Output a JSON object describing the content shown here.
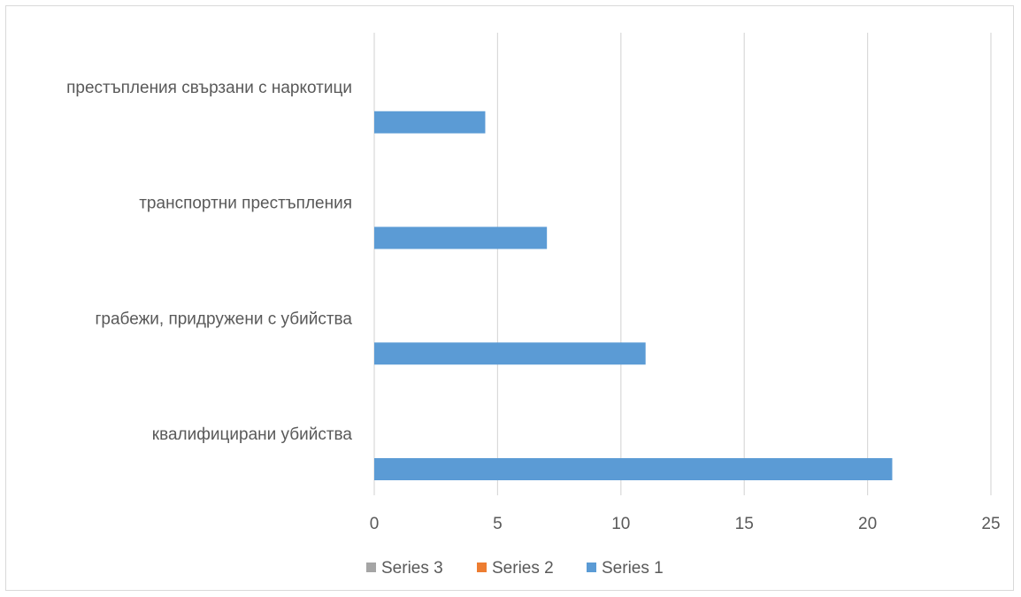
{
  "chart_data": {
    "type": "bar",
    "orientation": "horizontal",
    "categories": [
      "квалифицирани убийства",
      "грабежи, придружени с убийства",
      "транспортни престъпления",
      "престъпления свързани с наркотици"
    ],
    "series": [
      {
        "name": "Series 1",
        "values": [
          21,
          11,
          7,
          4.5
        ],
        "color": "#5b9bd5"
      },
      {
        "name": "Series 2",
        "values": [
          0,
          0,
          0,
          0
        ],
        "color": "#ed7d31"
      },
      {
        "name": "Series 3",
        "values": [
          0,
          0,
          0,
          0
        ],
        "color": "#a5a5a5"
      }
    ],
    "xlim": [
      0,
      25
    ],
    "x_ticks": [
      "0",
      "5",
      "10",
      "15",
      "20",
      "25"
    ],
    "grid": "vertical",
    "legend": {
      "position": "bottom",
      "entries": [
        "Series 3",
        "Series 2",
        "Series 1"
      ]
    },
    "title": "",
    "xlabel": "",
    "ylabel": ""
  }
}
